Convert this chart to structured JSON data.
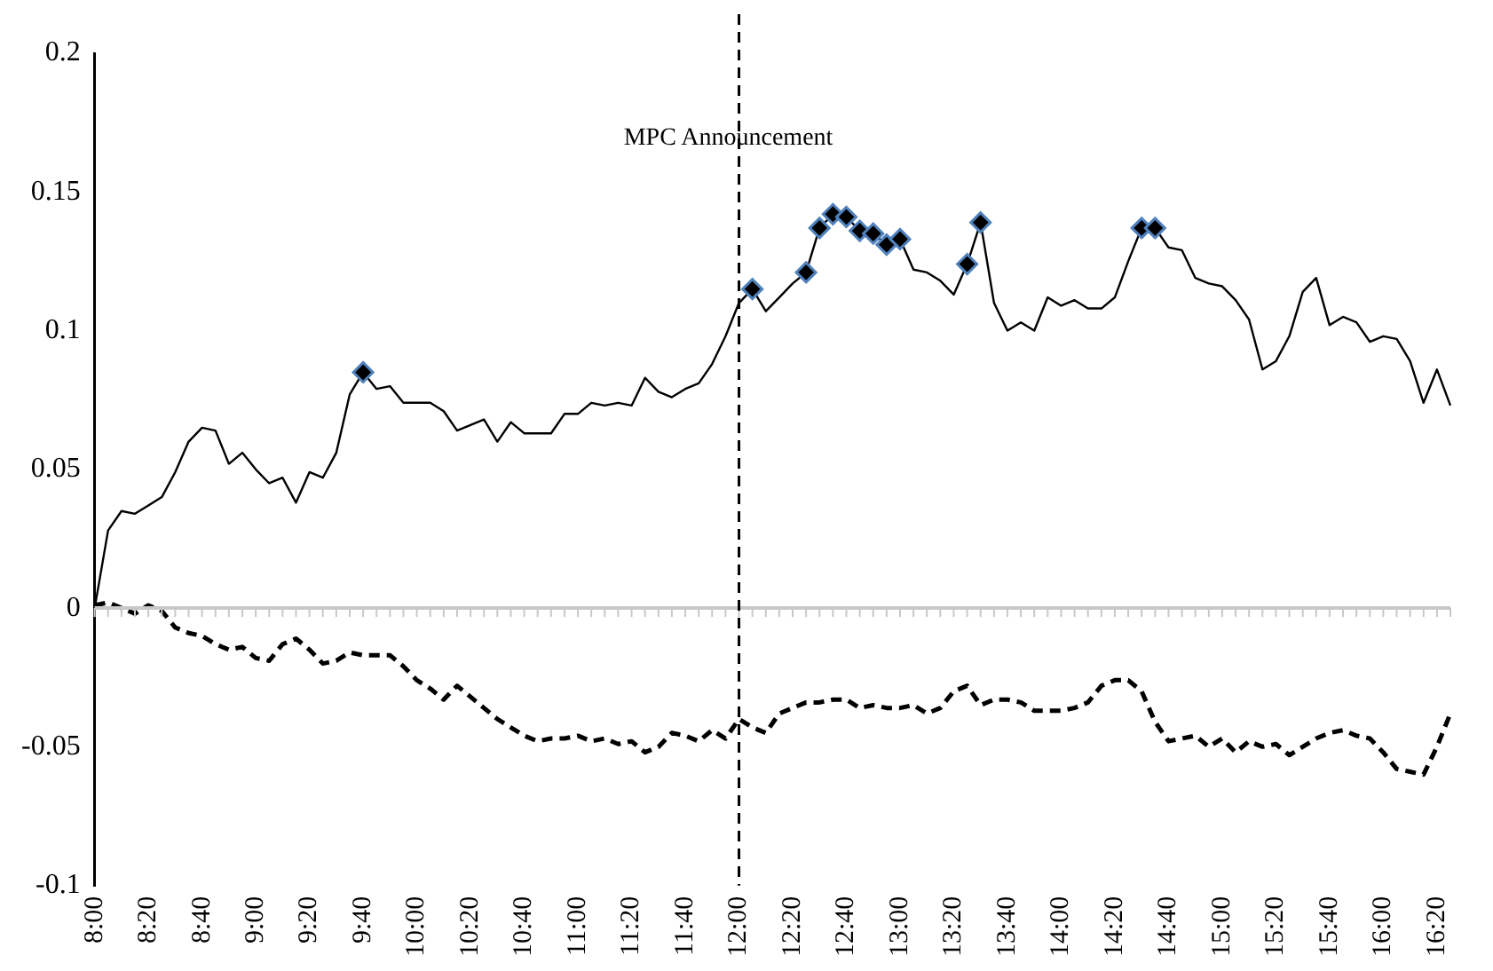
{
  "chart_data": {
    "type": "line",
    "categories": [
      "8:00",
      null,
      null,
      null,
      "8:20",
      null,
      null,
      null,
      "8:40",
      null,
      null,
      null,
      "9:00",
      null,
      null,
      null,
      "9:20",
      null,
      null,
      null,
      "9:40",
      null,
      null,
      null,
      "10:00",
      null,
      null,
      null,
      "10:20",
      null,
      null,
      null,
      "10:40",
      null,
      null,
      null,
      "11:00",
      null,
      null,
      null,
      "11:20",
      null,
      null,
      null,
      "11:40",
      null,
      null,
      null,
      "12:00",
      null,
      null,
      null,
      "12:20",
      null,
      null,
      null,
      "12:40",
      null,
      null,
      null,
      "13:00",
      null,
      null,
      null,
      "13:20",
      null,
      null,
      null,
      "13:40",
      null,
      null,
      null,
      "14:00",
      null,
      null,
      null,
      "14:20",
      null,
      null,
      null,
      "14:40",
      null,
      null,
      null,
      "15:00",
      null,
      null,
      null,
      "15:20",
      null,
      null,
      null,
      "15:40",
      null,
      null,
      null,
      "16:00",
      null,
      null,
      null,
      "16:20",
      null
    ],
    "series": [
      {
        "color": "#000000",
        "line_style": "solid",
        "values": [
          0,
          0.028,
          0.035,
          0.034,
          0.037,
          0.04,
          0.049,
          0.06,
          0.065,
          0.064,
          0.052,
          0.056,
          0.05,
          0.045,
          0.047,
          0.038,
          0.049,
          0.047,
          0.056,
          0.077,
          0.085,
          0.079,
          0.08,
          0.074,
          0.074,
          0.074,
          0.071,
          0.064,
          0.066,
          0.068,
          0.06,
          0.067,
          0.063,
          0.063,
          0.063,
          0.07,
          0.07,
          0.074,
          0.073,
          0.074,
          0.073,
          0.083,
          0.078,
          0.076,
          0.079,
          0.081,
          0.088,
          0.098,
          0.11,
          0.115,
          0.107,
          0.112,
          0.117,
          0.121,
          0.137,
          0.142,
          0.141,
          0.136,
          0.135,
          0.131,
          0.133,
          0.122,
          0.121,
          0.118,
          0.113,
          0.124,
          0.139,
          0.11,
          0.1,
          0.103,
          0.1,
          0.112,
          0.109,
          0.111,
          0.108,
          0.108,
          0.112,
          0.125,
          0.137,
          0.137,
          0.13,
          0.129,
          0.119,
          0.117,
          0.116,
          0.111,
          0.104,
          0.086,
          0.089,
          0.098,
          0.114,
          0.119,
          0.102,
          0.105,
          0.103,
          0.096,
          0.098,
          0.097,
          0.089,
          0.074,
          0.086,
          0.073
        ]
      },
      {
        "type": "scatter",
        "color": "#000000",
        "marker": "diamond",
        "values": [
          null,
          null,
          null,
          null,
          null,
          null,
          null,
          null,
          null,
          null,
          null,
          null,
          null,
          null,
          null,
          null,
          null,
          null,
          null,
          null,
          0.085,
          null,
          null,
          null,
          null,
          null,
          null,
          null,
          null,
          null,
          null,
          null,
          null,
          null,
          null,
          null,
          null,
          null,
          null,
          null,
          null,
          null,
          null,
          null,
          null,
          null,
          null,
          null,
          null,
          0.115,
          null,
          null,
          null,
          0.121,
          0.137,
          0.142,
          0.141,
          0.136,
          0.135,
          0.131,
          0.133,
          null,
          null,
          null,
          null,
          0.124,
          0.139,
          null,
          null,
          null,
          null,
          null,
          null,
          null,
          null,
          null,
          null,
          null,
          0.137,
          0.137,
          null,
          null,
          null,
          null,
          null,
          null,
          null,
          null,
          null,
          null,
          null,
          null,
          null,
          null,
          null,
          null,
          null,
          null,
          null,
          null,
          null,
          null
        ]
      },
      {
        "color": "#000000",
        "line_style": "dashed",
        "values": [
          0.001,
          0.002,
          0,
          -0.002,
          0.001,
          -0.001,
          -0.007,
          -0.009,
          -0.01,
          -0.013,
          -0.015,
          -0.014,
          -0.018,
          -0.019,
          -0.013,
          -0.011,
          -0.015,
          -0.02,
          -0.019,
          -0.016,
          -0.017,
          -0.017,
          -0.017,
          -0.021,
          -0.026,
          -0.029,
          -0.033,
          -0.028,
          -0.032,
          -0.036,
          -0.04,
          -0.043,
          -0.046,
          -0.048,
          -0.047,
          -0.047,
          -0.046,
          -0.048,
          -0.047,
          -0.049,
          -0.048,
          -0.052,
          -0.05,
          -0.045,
          -0.046,
          -0.048,
          -0.044,
          -0.047,
          -0.04,
          -0.043,
          -0.045,
          -0.038,
          -0.036,
          -0.034,
          -0.034,
          -0.033,
          -0.033,
          -0.036,
          -0.035,
          -0.036,
          -0.036,
          -0.035,
          -0.038,
          -0.036,
          -0.03,
          -0.028,
          -0.035,
          -0.033,
          -0.033,
          -0.034,
          -0.037,
          -0.037,
          -0.037,
          -0.036,
          -0.034,
          -0.028,
          -0.026,
          -0.026,
          -0.03,
          -0.041,
          -0.048,
          -0.047,
          -0.046,
          -0.05,
          -0.047,
          -0.052,
          -0.048,
          -0.05,
          -0.049,
          -0.053,
          -0.05,
          -0.047,
          -0.045,
          -0.044,
          -0.046,
          -0.047,
          -0.052,
          -0.058,
          -0.059,
          -0.06,
          -0.05,
          -0.038
        ]
      }
    ],
    "ylim": [
      -0.1,
      0.2
    ],
    "yticks": [
      -0.1,
      -0.05,
      0,
      0.05,
      0.1,
      0.15,
      0.2
    ],
    "ref_lines": [
      {
        "axis": "x",
        "value": "12:00",
        "label": "MPC Announcement",
        "line_style": "dashed",
        "color": "#000000"
      }
    ],
    "grid": false,
    "legend": false
  }
}
